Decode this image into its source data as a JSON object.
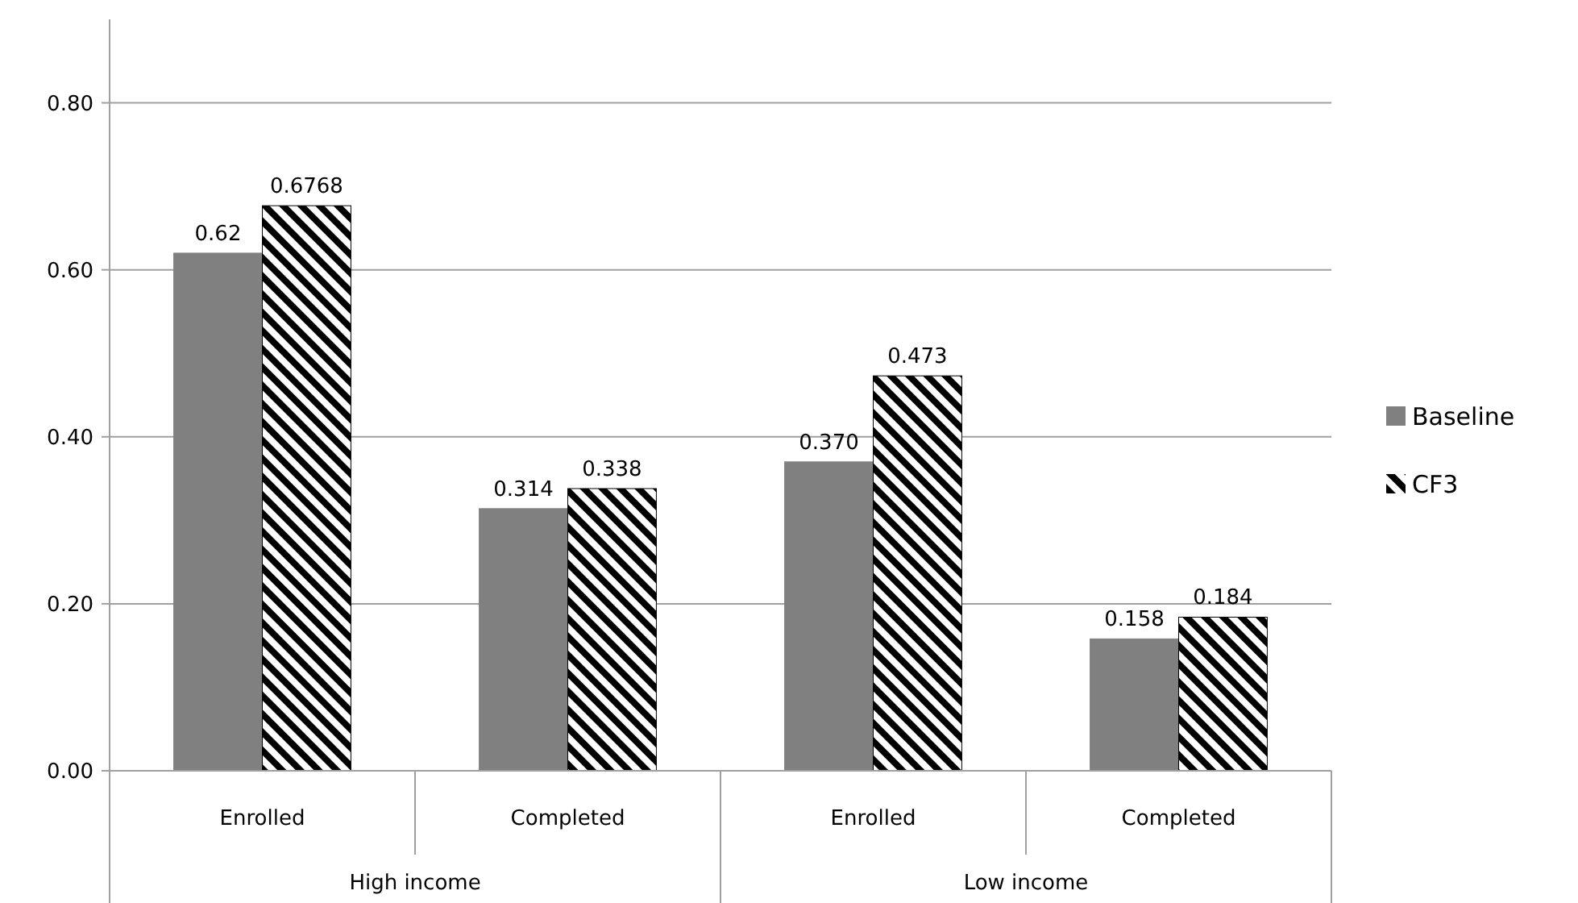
{
  "chart_data": {
    "type": "bar",
    "categories": [
      "Enrolled",
      "Completed",
      "Enrolled",
      "Completed"
    ],
    "series": [
      {
        "name": "Baseline",
        "color": "#808080",
        "values": [
          0.62,
          0.314,
          0.37,
          0.158
        ],
        "value_labels": [
          "0.62",
          "0.314",
          "0.370",
          "0.158"
        ]
      },
      {
        "name": "CF3",
        "color": "#000000",
        "values": [
          0.6768,
          0.338,
          0.473,
          0.184
        ],
        "value_labels": [
          "0.6768",
          "0.338",
          "0.473",
          "0.184"
        ]
      }
    ],
    "annotations": [
      "High income",
      "Low income"
    ],
    "ylim": [
      0,
      0.9
    ],
    "yticks": [
      {
        "value": 0,
        "label": "0.00"
      },
      {
        "value": 0.2,
        "label": "0.20"
      },
      {
        "value": 0.4,
        "label": "0.40"
      },
      {
        "value": 0.6,
        "label": "0.60"
      },
      {
        "value": 0.8,
        "label": "0.80"
      }
    ],
    "grid": "y",
    "legend": "right"
  }
}
